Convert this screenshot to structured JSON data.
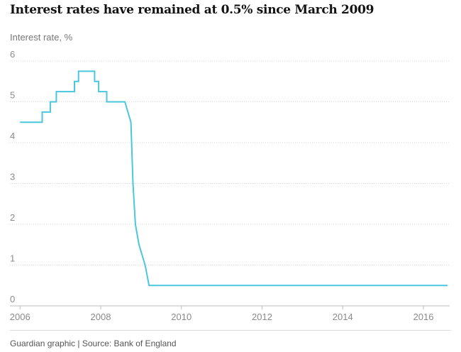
{
  "header": {
    "title": "Interest rates have remained at 0.5% since March 2009",
    "ylabel": "Interest rate, %"
  },
  "footer": {
    "source": "Guardian graphic | Source: Bank of England"
  },
  "colors": {
    "line": "#4bc6df",
    "grid": "#d5d5d5",
    "axis": "#bdbdbd"
  },
  "chart_data": {
    "type": "line",
    "title": "Interest rates have remained at 0.5% since March 2009",
    "xlabel": "",
    "ylabel": "Interest rate, %",
    "xlim": [
      2005.75,
      2016.65
    ],
    "ylim": [
      0,
      6
    ],
    "xticks": [
      2006,
      2008,
      2010,
      2012,
      2014,
      2016
    ],
    "yticks": [
      0,
      1,
      2,
      3,
      4,
      5,
      6
    ],
    "grid": true,
    "series": [
      {
        "name": "",
        "x": [
          2006.0,
          2006.55,
          2006.55,
          2006.75,
          2006.75,
          2006.9,
          2006.9,
          2007.05,
          2007.05,
          2007.35,
          2007.35,
          2007.45,
          2007.45,
          2007.85,
          2007.85,
          2007.95,
          2007.95,
          2008.05,
          2008.05,
          2008.15,
          2008.15,
          2008.6,
          2008.75,
          2008.8,
          2008.86,
          2008.95,
          2009.1,
          2009.2,
          2016.6
        ],
        "y": [
          4.5,
          4.5,
          4.75,
          4.75,
          5.0,
          5.0,
          5.25,
          5.25,
          5.25,
          5.25,
          5.5,
          5.5,
          5.75,
          5.75,
          5.5,
          5.5,
          5.25,
          5.25,
          5.25,
          5.25,
          5.0,
          5.0,
          4.5,
          3.0,
          2.0,
          1.5,
          1.0,
          0.5,
          0.5
        ]
      }
    ]
  }
}
